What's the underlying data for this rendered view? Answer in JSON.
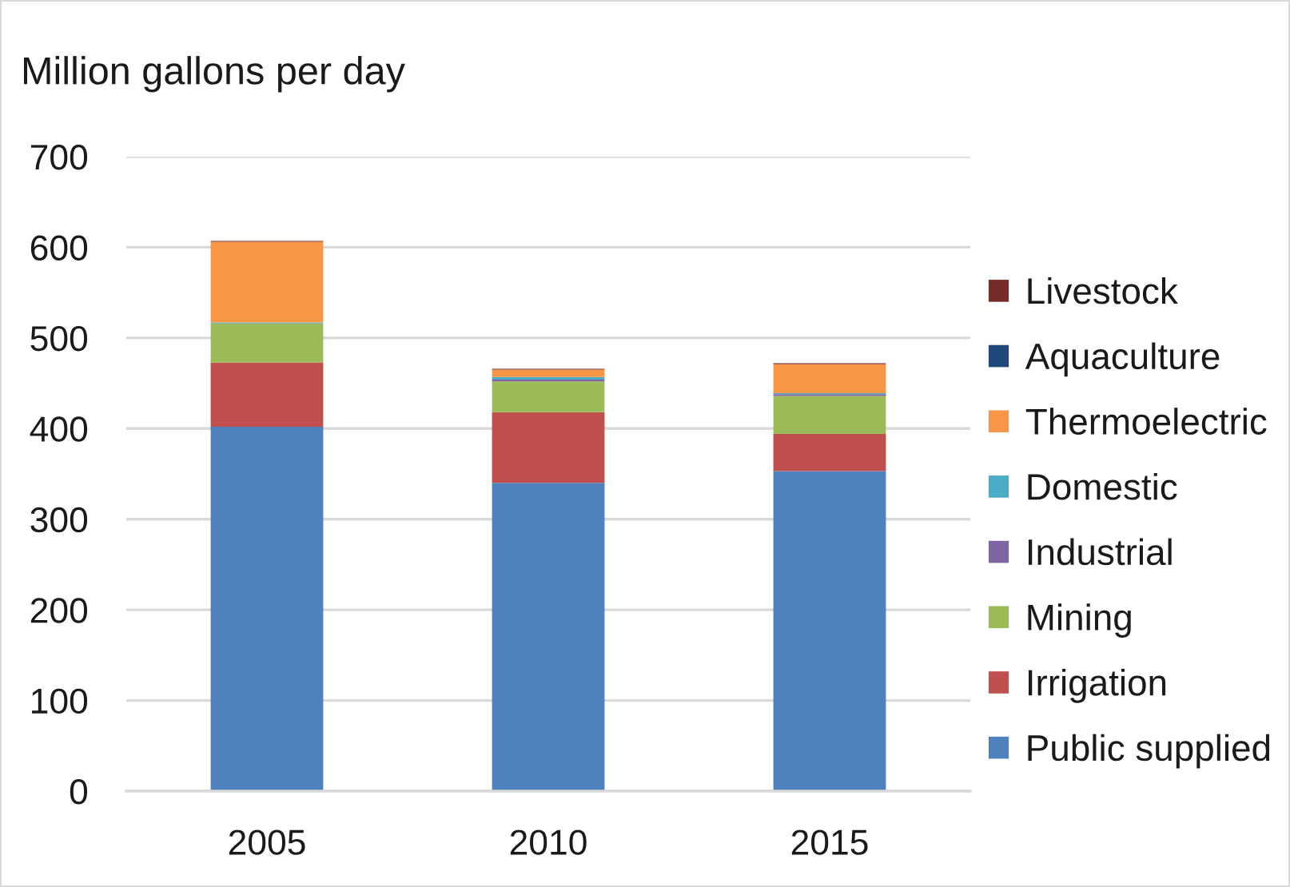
{
  "chart_data": {
    "type": "bar",
    "stacked": true,
    "ylabel": "Million gallons per day",
    "categories": [
      "2005",
      "2010",
      "2015"
    ],
    "series": [
      {
        "name": "Public supplied",
        "color": "#4f81bd",
        "values": [
          402,
          340,
          353
        ]
      },
      {
        "name": "Irrigation",
        "color": "#c0504d",
        "values": [
          71,
          78,
          41
        ]
      },
      {
        "name": "Mining",
        "color": "#9bbb59",
        "values": [
          43,
          34,
          42
        ]
      },
      {
        "name": "Industrial",
        "color": "#8064a2",
        "values": [
          0,
          2,
          2
        ]
      },
      {
        "name": "Domestic",
        "color": "#4bacc6",
        "values": [
          1,
          3,
          1
        ]
      },
      {
        "name": "Thermoelectric",
        "color": "#f79646",
        "values": [
          89,
          8,
          32
        ]
      },
      {
        "name": "Aquaculture",
        "color": "#1f497d",
        "values": [
          0,
          0,
          0
        ]
      },
      {
        "name": "Livestock",
        "color": "#772c2a",
        "values": [
          1,
          1,
          1
        ]
      }
    ],
    "ylim": [
      0,
      700
    ],
    "yticks": [
      0,
      100,
      200,
      300,
      400,
      500,
      600,
      700
    ],
    "grid": "y",
    "legend": "right"
  }
}
